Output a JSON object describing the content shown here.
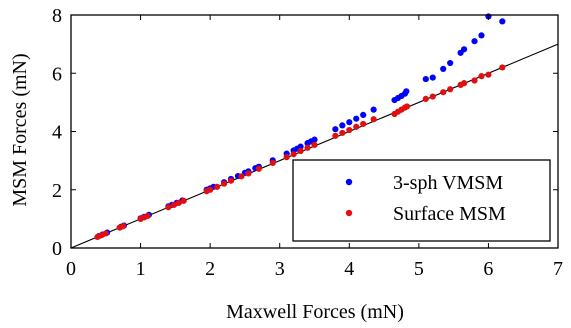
{
  "chart_data": {
    "type": "scatter",
    "title": "",
    "xlabel": "Maxwell Forces (mN)",
    "ylabel": "MSM Forces (mN)",
    "xlim": [
      0,
      7
    ],
    "ylim": [
      0,
      8
    ],
    "x_ticks": [
      "0",
      "1",
      "2",
      "3",
      "4",
      "5",
      "6",
      "7"
    ],
    "y_ticks": [
      "0",
      "2",
      "4",
      "6",
      "8"
    ],
    "grid": false,
    "legend": {
      "placement": "bottom-right"
    },
    "reference_line": {
      "x": [
        0,
        7
      ],
      "y": [
        0,
        7
      ],
      "color": "#000000"
    },
    "series": [
      {
        "name": "3-sph VMSM",
        "color": "#0000ff",
        "points": [
          [
            0.4,
            0.41
          ],
          [
            0.45,
            0.46
          ],
          [
            0.52,
            0.53
          ],
          [
            0.72,
            0.73
          ],
          [
            0.76,
            0.77
          ],
          [
            1.0,
            1.02
          ],
          [
            1.05,
            1.07
          ],
          [
            1.12,
            1.14
          ],
          [
            1.4,
            1.43
          ],
          [
            1.45,
            1.48
          ],
          [
            1.52,
            1.55
          ],
          [
            1.6,
            1.63
          ],
          [
            1.95,
            2.0
          ],
          [
            2.0,
            2.05
          ],
          [
            2.05,
            2.1
          ],
          [
            2.2,
            2.26
          ],
          [
            2.3,
            2.37
          ],
          [
            2.4,
            2.47
          ],
          [
            2.5,
            2.58
          ],
          [
            2.55,
            2.63
          ],
          [
            2.65,
            2.74
          ],
          [
            2.7,
            2.79
          ],
          [
            2.9,
            3.01
          ],
          [
            3.1,
            3.24
          ],
          [
            3.2,
            3.35
          ],
          [
            3.25,
            3.41
          ],
          [
            3.3,
            3.48
          ],
          [
            3.4,
            3.6
          ],
          [
            3.45,
            3.66
          ],
          [
            3.5,
            3.72
          ],
          [
            3.8,
            4.08
          ],
          [
            3.9,
            4.21
          ],
          [
            4.0,
            4.32
          ],
          [
            4.1,
            4.44
          ],
          [
            4.2,
            4.57
          ],
          [
            4.35,
            4.75
          ],
          [
            4.65,
            5.08
          ],
          [
            4.7,
            5.15
          ],
          [
            4.75,
            5.22
          ],
          [
            4.8,
            5.3
          ],
          [
            4.82,
            5.38
          ],
          [
            5.1,
            5.8
          ],
          [
            5.2,
            5.85
          ],
          [
            5.35,
            6.15
          ],
          [
            5.45,
            6.35
          ],
          [
            5.6,
            6.7
          ],
          [
            5.65,
            6.82
          ],
          [
            5.8,
            7.1
          ],
          [
            5.9,
            7.3
          ],
          [
            6.0,
            7.95
          ],
          [
            6.2,
            7.78
          ]
        ]
      },
      {
        "name": "Surface MSM",
        "color": "#e01010",
        "points": [
          [
            0.38,
            0.38
          ],
          [
            0.44,
            0.44
          ],
          [
            0.5,
            0.5
          ],
          [
            0.7,
            0.7
          ],
          [
            0.75,
            0.75
          ],
          [
            1.0,
            1.0
          ],
          [
            1.05,
            1.05
          ],
          [
            1.1,
            1.1
          ],
          [
            1.4,
            1.4
          ],
          [
            1.48,
            1.48
          ],
          [
            1.55,
            1.55
          ],
          [
            1.62,
            1.62
          ],
          [
            1.95,
            1.95
          ],
          [
            2.0,
            2.0
          ],
          [
            2.1,
            2.1
          ],
          [
            2.2,
            2.21
          ],
          [
            2.3,
            2.31
          ],
          [
            2.45,
            2.46
          ],
          [
            2.55,
            2.56
          ],
          [
            2.7,
            2.72
          ],
          [
            2.9,
            2.92
          ],
          [
            3.1,
            3.12
          ],
          [
            3.2,
            3.22
          ],
          [
            3.3,
            3.33
          ],
          [
            3.4,
            3.44
          ],
          [
            3.5,
            3.54
          ],
          [
            3.8,
            3.85
          ],
          [
            3.9,
            3.95
          ],
          [
            4.0,
            4.05
          ],
          [
            4.1,
            4.16
          ],
          [
            4.2,
            4.26
          ],
          [
            4.35,
            4.42
          ],
          [
            4.65,
            4.6
          ],
          [
            4.7,
            4.68
          ],
          [
            4.75,
            4.75
          ],
          [
            4.8,
            4.82
          ],
          [
            4.83,
            4.86
          ],
          [
            5.1,
            5.12
          ],
          [
            5.2,
            5.2
          ],
          [
            5.35,
            5.35
          ],
          [
            5.45,
            5.45
          ],
          [
            5.6,
            5.6
          ],
          [
            5.65,
            5.66
          ],
          [
            5.8,
            5.75
          ],
          [
            5.9,
            5.9
          ],
          [
            6.0,
            5.95
          ],
          [
            6.2,
            6.2
          ]
        ]
      }
    ]
  }
}
